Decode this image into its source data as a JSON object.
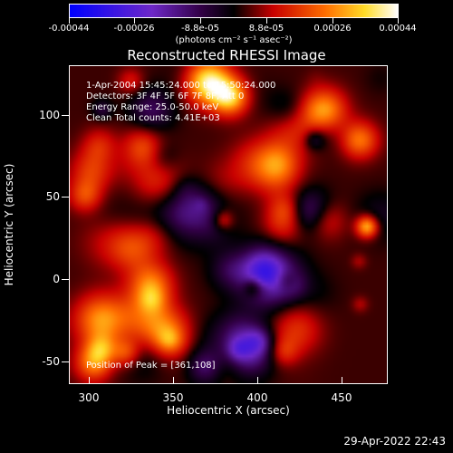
{
  "colorbar": {
    "tick_labels": [
      "-0.00044",
      "-0.00026",
      "-8.8e-05",
      "8.8e-05",
      "0.00026",
      "0.00044"
    ],
    "units": "(photons cm⁻² s⁻¹ asec⁻²)"
  },
  "image_title": "Reconstructed RHESSI Image",
  "overlay": {
    "line1": "1-Apr-2004 15:45:24.000 to 15:50:24.000",
    "line2": "Detectors: 3F 4F 5F 6F 7F 8F, Att 0",
    "line3": "Energy Range: 25.0-50.0 keV",
    "line4": "Clean    Total counts: 4.41E+03",
    "peak": "Position of Peak = [361,108]"
  },
  "axes": {
    "xlabel": "Heliocentric X (arcsec)",
    "ylabel": "Heliocentric Y (arcsec)",
    "xticks": [
      "300",
      "350",
      "400",
      "450"
    ],
    "yticks": [
      "100",
      "50",
      "0",
      "-50"
    ]
  },
  "timestamp": "29-Apr-2022 22:43"
}
